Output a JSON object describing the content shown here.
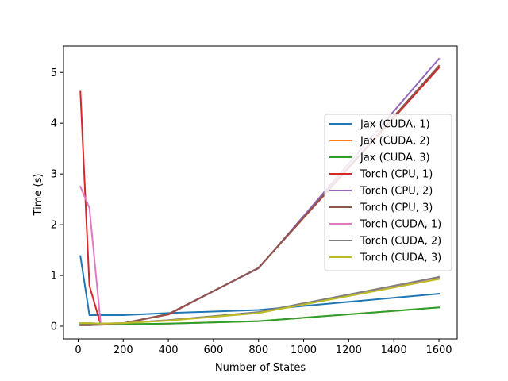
{
  "chart_data": {
    "type": "line",
    "title": "",
    "xlabel": "Number of States",
    "ylabel": "Time (s)",
    "xlim": [
      -65,
      1681
    ],
    "ylim": [
      -0.25,
      5.52
    ],
    "xticks": [
      0,
      200,
      400,
      600,
      800,
      1000,
      1200,
      1400,
      1600
    ],
    "yticks": [
      0,
      1,
      2,
      3,
      4,
      5
    ],
    "grid": false,
    "legend_position": "center-right",
    "x": [
      10,
      50,
      100,
      200,
      400,
      800,
      1600
    ],
    "series": [
      {
        "name": "Jax (CUDA, 1)",
        "color": "#1f77b4",
        "values": [
          1.38,
          0.22,
          0.22,
          0.22,
          0.26,
          0.32,
          0.64
        ]
      },
      {
        "name": "Jax (CUDA, 2)",
        "color": "#ff7f0e",
        "values": [
          0.03,
          0.03,
          0.03,
          0.04,
          0.05,
          0.1,
          0.37
        ]
      },
      {
        "name": "Jax (CUDA, 3)",
        "color": "#2ca02c",
        "values": [
          0.03,
          0.03,
          0.03,
          0.04,
          0.05,
          0.1,
          0.37
        ]
      },
      {
        "name": "Torch (CPU, 1)",
        "color": "#d62728",
        "values": [
          4.62,
          0.8,
          0.03,
          0.06,
          0.23,
          1.15,
          5.09
        ]
      },
      {
        "name": "Torch (CPU, 2)",
        "color": "#9467bd",
        "values": [
          0.02,
          0.02,
          0.03,
          0.06,
          0.24,
          1.14,
          5.27
        ]
      },
      {
        "name": "Torch (CPU, 3)",
        "color": "#8c564b",
        "values": [
          0.02,
          0.02,
          0.03,
          0.06,
          0.24,
          1.15,
          5.13
        ]
      },
      {
        "name": "Torch (CUDA, 1)",
        "color": "#e377c2",
        "values": [
          2.75,
          2.33,
          0.05,
          0.06,
          0.12,
          0.27,
          0.95
        ]
      },
      {
        "name": "Torch (CUDA, 2)",
        "color": "#7f7f7f",
        "values": [
          0.06,
          0.06,
          0.05,
          0.06,
          0.12,
          0.28,
          0.97
        ]
      },
      {
        "name": "Torch (CUDA, 3)",
        "color": "#bcbd22",
        "values": [
          0.06,
          0.06,
          0.05,
          0.06,
          0.11,
          0.26,
          0.93
        ]
      }
    ]
  }
}
